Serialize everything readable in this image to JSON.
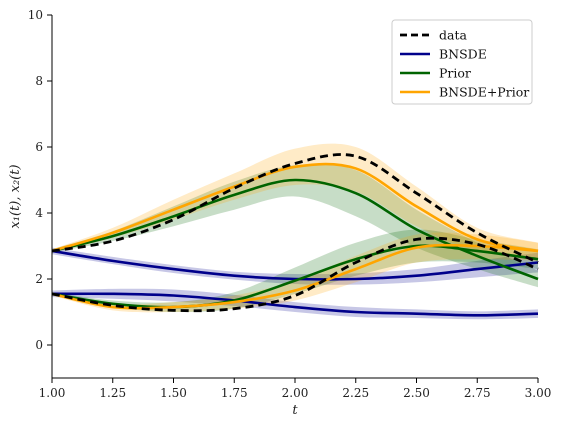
{
  "chart_data": {
    "type": "line",
    "xlabel": "t",
    "ylabel": "x₁(t), x₂(t)",
    "xlim": [
      1.0,
      3.0
    ],
    "ylim": [
      -1,
      10
    ],
    "xticks": [
      "1.00",
      "1.25",
      "1.50",
      "1.75",
      "2.00",
      "2.25",
      "2.50",
      "2.75",
      "3.00"
    ],
    "yticks": [
      "0",
      "2",
      "4",
      "6",
      "8",
      "10"
    ],
    "grid": false,
    "legend": {
      "placement": "top-right",
      "entries": [
        "data",
        "BNSDE",
        "Prior",
        "BNSDE+Prior"
      ]
    },
    "x": [
      1.0,
      1.25,
      1.5,
      1.75,
      2.0,
      2.25,
      2.5,
      2.75,
      3.0
    ],
    "series": [
      {
        "name": "data",
        "color": "#000000",
        "style": "dashed",
        "variable": "x1",
        "values": [
          2.85,
          3.15,
          3.8,
          4.75,
          5.5,
          5.72,
          4.6,
          3.4,
          2.5
        ]
      },
      {
        "name": "data",
        "color": "#000000",
        "style": "dashed",
        "variable": "x2",
        "values": [
          1.55,
          1.2,
          1.05,
          1.1,
          1.5,
          2.5,
          3.2,
          3.05,
          2.3
        ]
      },
      {
        "name": "BNSDE",
        "color": "#00008b",
        "style": "solid",
        "variable": "x1",
        "values": [
          2.85,
          2.55,
          2.3,
          2.1,
          2.0,
          2.0,
          2.1,
          2.3,
          2.5
        ],
        "lower": [
          2.75,
          2.45,
          2.18,
          1.98,
          1.85,
          1.83,
          1.9,
          2.05,
          2.2
        ],
        "upper": [
          2.95,
          2.67,
          2.42,
          2.22,
          2.15,
          2.17,
          2.3,
          2.55,
          2.8
        ]
      },
      {
        "name": "BNSDE",
        "color": "#00008b",
        "style": "solid",
        "variable": "x2",
        "values": [
          1.55,
          1.55,
          1.5,
          1.35,
          1.15,
          1.0,
          0.95,
          0.9,
          0.95
        ],
        "lower": [
          1.45,
          1.4,
          1.32,
          1.18,
          1.0,
          0.85,
          0.82,
          0.78,
          0.82
        ],
        "upper": [
          1.65,
          1.7,
          1.68,
          1.52,
          1.3,
          1.15,
          1.08,
          1.02,
          1.08
        ]
      },
      {
        "name": "Prior",
        "color": "#006400",
        "style": "solid",
        "variable": "x1",
        "values": [
          2.85,
          3.3,
          3.9,
          4.55,
          5.0,
          4.6,
          3.5,
          2.7,
          2.0
        ],
        "lower": [
          2.8,
          3.15,
          3.6,
          4.1,
          4.5,
          3.9,
          2.95,
          2.3,
          1.75
        ],
        "upper": [
          2.9,
          3.45,
          4.2,
          4.95,
          5.45,
          5.3,
          4.1,
          3.1,
          2.25
        ]
      },
      {
        "name": "Prior",
        "color": "#006400",
        "style": "solid",
        "variable": "x2",
        "values": [
          1.55,
          1.25,
          1.15,
          1.35,
          1.95,
          2.6,
          3.0,
          2.85,
          2.6
        ],
        "lower": [
          1.5,
          1.15,
          1.0,
          1.1,
          1.55,
          2.1,
          2.5,
          2.5,
          2.3
        ],
        "upper": [
          1.6,
          1.35,
          1.3,
          1.6,
          2.35,
          3.1,
          3.5,
          3.2,
          2.9
        ]
      },
      {
        "name": "BNSDE+Prior",
        "color": "#ffa500",
        "style": "solid",
        "variable": "x1",
        "values": [
          2.85,
          3.4,
          4.1,
          4.8,
          5.4,
          5.35,
          4.2,
          3.2,
          2.85
        ],
        "lower": [
          2.8,
          3.25,
          3.8,
          4.4,
          4.85,
          4.65,
          3.6,
          2.85,
          2.6
        ],
        "upper": [
          2.9,
          3.55,
          4.4,
          5.2,
          5.95,
          6.0,
          4.8,
          3.55,
          3.1
        ]
      },
      {
        "name": "BNSDE+Prior",
        "color": "#ffa500",
        "style": "solid",
        "variable": "x2",
        "values": [
          1.55,
          1.15,
          1.15,
          1.3,
          1.65,
          2.3,
          2.95,
          3.0,
          2.85
        ],
        "lower": [
          1.5,
          1.05,
          1.0,
          1.1,
          1.35,
          1.9,
          2.5,
          2.6,
          2.55
        ],
        "upper": [
          1.6,
          1.25,
          1.3,
          1.5,
          1.95,
          2.7,
          3.35,
          3.35,
          3.1
        ]
      }
    ]
  }
}
